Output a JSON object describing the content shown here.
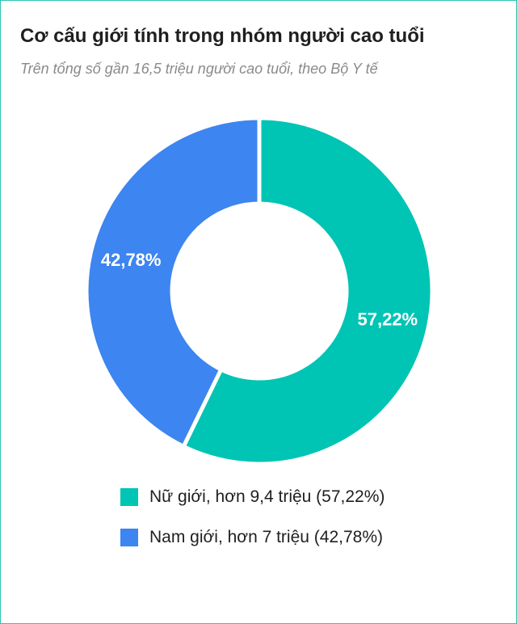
{
  "title": "Cơ cấu giới tính trong nhóm người cao tuổi",
  "subtitle": "Trên tổng số gần 16,5 triệu người cao tuổi, theo Bộ Y tế",
  "colors": {
    "female": "#00c4b4",
    "male": "#3d85f0",
    "border": "#2cc5b1"
  },
  "chart_data": {
    "type": "pie",
    "title": "Cơ cấu giới tính trong nhóm người cao tuổi",
    "subtitle": "Trên tổng số gần 16,5 triệu người cao tuổi, theo Bộ Y tế",
    "donut": true,
    "legend_position": "bottom",
    "slices": [
      {
        "label": "Nữ giới, hơn 9,4 triệu (57,22%)",
        "value": 57.22,
        "data_label": "57,22%",
        "color": "#00c4b4"
      },
      {
        "label": "Nam giới, hơn 7 triệu (42,78%)",
        "value": 42.78,
        "data_label": "42,78%",
        "color": "#3d85f0"
      }
    ]
  }
}
